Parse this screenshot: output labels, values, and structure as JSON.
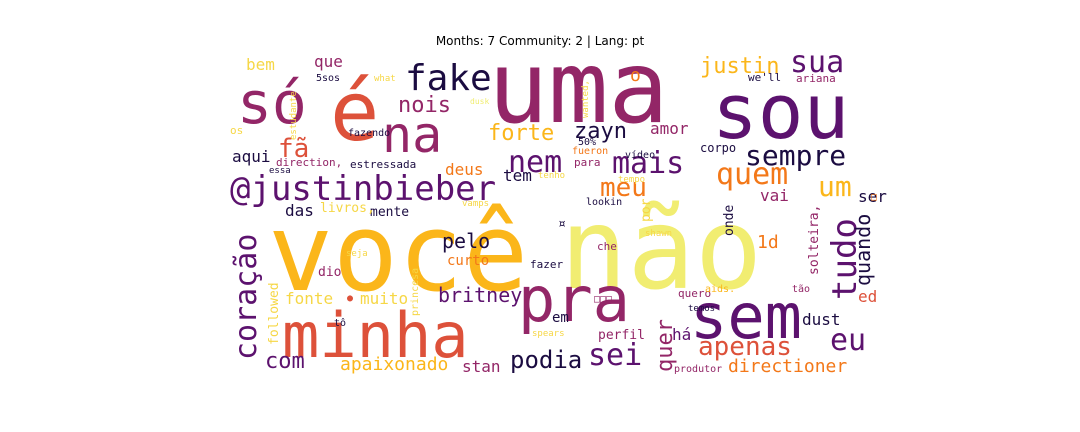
{
  "title": "Months: 7 Community: 2 | Lang: pt",
  "palette": {
    "dark": "#1b0c41",
    "purple": "#5c126e",
    "magenta": "#932667",
    "red": "#dd513a",
    "orange": "#f37819",
    "gold": "#fbb61a",
    "yellow": "#f6d746",
    "pale": "#f1ed71"
  },
  "words": [
    {
      "text": "uma",
      "color": "#932667"
    },
    {
      "text": "sou",
      "color": "#5c126e"
    },
    {
      "text": "só",
      "color": "#932667"
    },
    {
      "text": "é",
      "color": "#dd513a"
    },
    {
      "text": "na",
      "color": "#932667"
    },
    {
      "text": "fake",
      "color": "#1b0c41"
    },
    {
      "text": "você",
      "color": "#fbb61a"
    },
    {
      "text": "não",
      "color": "#f1ed71"
    },
    {
      "text": "minha",
      "color": "#dd513a"
    },
    {
      "text": "pra",
      "color": "#932667"
    },
    {
      "text": "sem",
      "color": "#5c126e"
    },
    {
      "text": "@justinbieber",
      "color": "#5c126e"
    },
    {
      "text": "coração",
      "color": "#5c126e"
    },
    {
      "text": "sua",
      "color": "#5c126e"
    },
    {
      "text": "justin",
      "color": "#fbb61a"
    },
    {
      "text": "nem",
      "color": "#5c126e"
    },
    {
      "text": "mais",
      "color": "#5c126e"
    },
    {
      "text": "sempre",
      "color": "#1b0c41"
    },
    {
      "text": "quem",
      "color": "#f37819"
    },
    {
      "text": "um",
      "color": "#fbb61a"
    },
    {
      "text": "tudo",
      "color": "#5c126e"
    },
    {
      "text": "meu",
      "color": "#f37819"
    },
    {
      "text": "zayn",
      "color": "#1b0c41"
    },
    {
      "text": "forte",
      "color": "#fbb61a"
    },
    {
      "text": "fã",
      "color": "#dd513a"
    },
    {
      "text": "nois",
      "color": "#932667"
    },
    {
      "text": "apenas",
      "color": "#dd513a"
    },
    {
      "text": "eu",
      "color": "#5c126e"
    },
    {
      "text": "sei",
      "color": "#5c126e"
    },
    {
      "text": "podia",
      "color": "#1b0c41"
    },
    {
      "text": "com",
      "color": "#5c126e"
    },
    {
      "text": "britney",
      "color": "#5c126e"
    },
    {
      "text": "pelo",
      "color": "#1b0c41"
    },
    {
      "text": "quer",
      "color": "#932667"
    },
    {
      "text": "quando",
      "color": "#1b0c41"
    },
    {
      "text": "directioner",
      "color": "#f37819"
    },
    {
      "text": "apaixonado",
      "color": "#fbb61a"
    },
    {
      "text": "stan",
      "color": "#932667"
    },
    {
      "text": "fonte",
      "color": "#f6d746"
    },
    {
      "text": "muito",
      "color": "#f6d746"
    },
    {
      "text": "amor",
      "color": "#932667"
    },
    {
      "text": "aqui",
      "color": "#1b0c41"
    },
    {
      "text": "das",
      "color": "#1b0c41"
    },
    {
      "text": "tem",
      "color": "#1b0c41"
    },
    {
      "text": "deus",
      "color": "#f37819"
    },
    {
      "text": "que",
      "color": "#932667"
    },
    {
      "text": "bem",
      "color": "#f6d746"
    },
    {
      "text": "o",
      "color": "#f37819"
    },
    {
      "text": "1d",
      "color": "#f37819"
    },
    {
      "text": "vai",
      "color": "#932667"
    },
    {
      "text": "ser",
      "color": "#1b0c41"
    },
    {
      "text": "ed",
      "color": "#dd513a"
    },
    {
      "text": "dust",
      "color": "#1b0c41"
    },
    {
      "text": "há",
      "color": "#5c126e"
    },
    {
      "text": "em",
      "color": "#1b0c41"
    },
    {
      "text": "mente",
      "color": "#1b0c41"
    },
    {
      "text": "curto",
      "color": "#f37819"
    },
    {
      "text": "livros,",
      "color": "#f6d746"
    },
    {
      "text": "corpo",
      "color": "#1b0c41"
    },
    {
      "text": "followed",
      "color": "#f6d746"
    },
    {
      "text": "solteira,",
      "color": "#932667"
    },
    {
      "text": "onde",
      "color": "#1b0c41"
    },
    {
      "text": "por",
      "color": "#f6d746"
    },
    {
      "text": "perfil",
      "color": "#932667"
    },
    {
      "text": "fazer",
      "color": "#1b0c41"
    },
    {
      "text": "quero",
      "color": "#932667"
    },
    {
      "text": "dio",
      "color": "#932667"
    },
    {
      "text": "estressada",
      "color": "#1b0c41"
    },
    {
      "text": "direction,",
      "color": "#932667"
    },
    {
      "text": "fazendo",
      "color": "#1b0c41"
    },
    {
      "text": "we'll",
      "color": "#1b0c41"
    },
    {
      "text": "ariana",
      "color": "#932667"
    },
    {
      "text": "5sos",
      "color": "#1b0c41"
    },
    {
      "text": "what",
      "color": "#f6d746"
    },
    {
      "text": "dusk",
      "color": "#f1ed71"
    },
    {
      "text": "wanted,",
      "color": "#f6d746"
    },
    {
      "text": "estudante",
      "color": "#f6d746"
    },
    {
      "text": "os",
      "color": "#f6d746"
    },
    {
      "text": "essa",
      "color": "#1b0c41"
    },
    {
      "text": "fueron",
      "color": "#f37819"
    },
    {
      "text": "para",
      "color": "#932667"
    },
    {
      "text": "vídeo",
      "color": "#1b0c41"
    },
    {
      "text": "50%",
      "color": "#1b0c41"
    },
    {
      "text": "tenho",
      "color": "#f6d746"
    },
    {
      "text": "tempo",
      "color": "#f6d746"
    },
    {
      "text": "vamps",
      "color": "#f6d746"
    },
    {
      "text": "lookin",
      "color": "#1b0c41"
    },
    {
      "text": "shawn",
      "color": "#f6d746"
    },
    {
      "text": "che",
      "color": "#932667"
    },
    {
      "text": "seja",
      "color": "#f6d746"
    },
    {
      "text": "princesa",
      "color": "#f6d746"
    },
    {
      "text": "aids.",
      "color": "#fbb61a"
    },
    {
      "text": "tão",
      "color": "#932667"
    },
    {
      "text": "temos",
      "color": "#1b0c41"
    },
    {
      "text": "spears",
      "color": "#f6d746"
    },
    {
      "text": "tô",
      "color": "#1b0c41"
    },
    {
      "text": "produtor",
      "color": "#932667"
    },
    {
      "text": "¤",
      "color": "#1b0c41"
    },
    {
      "text": "□□□",
      "color": "#932667"
    },
    {
      "text": "□",
      "color": "#f37819"
    },
    {
      "text": "●",
      "color": "#dd513a"
    }
  ]
}
